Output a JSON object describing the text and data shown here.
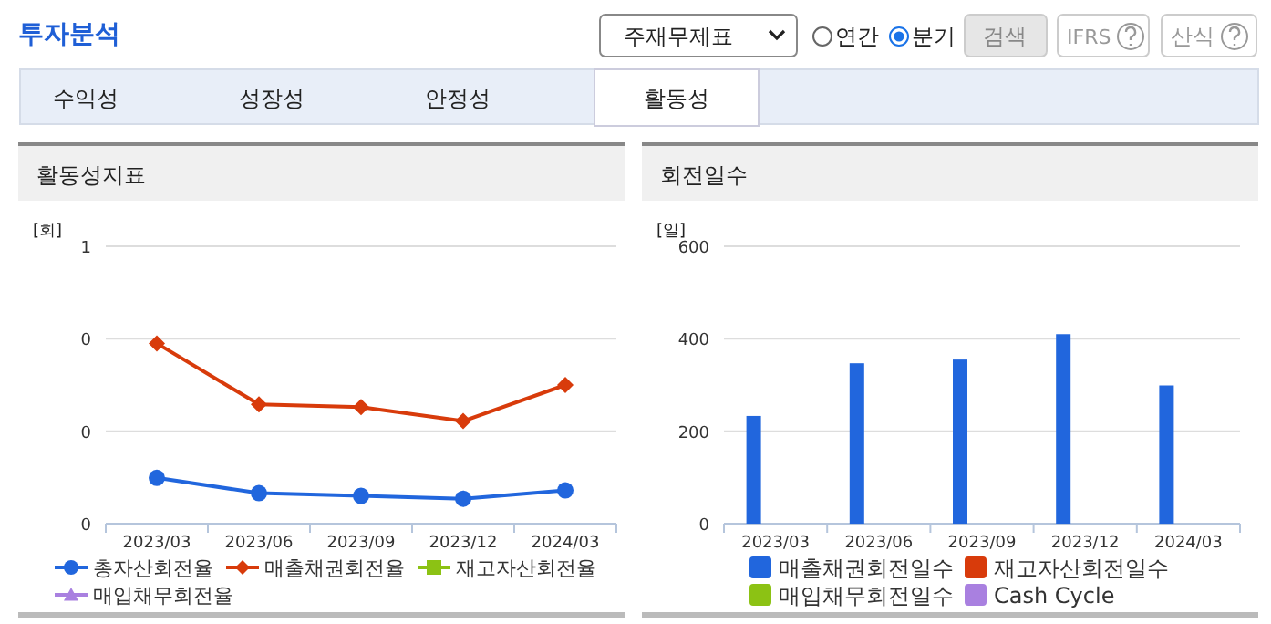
{
  "chart_data": [
    {
      "type": "other",
      "title": "투자분석",
      "annotations": [
        "주재무제표",
        "연간",
        "분기",
        "검색",
        "IFRS",
        "산식",
        "수익성",
        "성장성",
        "안정성",
        "활동성"
      ]
    },
    {
      "type": "line",
      "title": "활동성지표",
      "ylabel": "[회]",
      "categories": [
        "2023/03",
        "2023/06",
        "2023/09",
        "2023/12",
        "2024/03"
      ],
      "ylim": [
        0,
        0.6
      ],
      "yticks": [
        0,
        {
          "value": 0.2,
          "label": "0"
        },
        {
          "value": 0.4,
          "label": "0"
        },
        {
          "value": 0.6,
          "label": "1"
        }
      ],
      "grid": "y",
      "legend": "bottom",
      "series": [
        {
          "name": "총자산회전율",
          "color": "#2166dd",
          "marker": "circle",
          "values": [
            0.099,
            0.066,
            0.06,
            0.054,
            0.072
          ]
        },
        {
          "name": "매출채권회전율",
          "color": "#d83b0b",
          "marker": "diamond",
          "values": [
            0.39,
            0.258,
            0.252,
            0.222,
            0.3
          ]
        },
        {
          "name": "재고자산회전율",
          "color": "#8cc214",
          "marker": "square",
          "values": [
            null,
            null,
            null,
            null,
            null
          ]
        },
        {
          "name": "매입채무회전율",
          "color": "#a980e0",
          "marker": "triangle",
          "values": [
            null,
            null,
            null,
            null,
            null
          ]
        }
      ]
    },
    {
      "type": "bar",
      "title": "회전일수",
      "ylabel": "[일]",
      "categories": [
        "2023/03",
        "2023/06",
        "2023/09",
        "2023/12",
        "2024/03"
      ],
      "ylim": [
        0,
        600
      ],
      "yticks": [
        0,
        200,
        400,
        600
      ],
      "grid": "y",
      "legend": "bottom",
      "series": [
        {
          "name": "매출채권회전일수",
          "color": "#2166dd",
          "values": [
            233,
            347,
            355,
            410,
            299
          ]
        },
        {
          "name": "재고자산회전일수",
          "color": "#d83b0b",
          "values": [
            null,
            null,
            null,
            null,
            null
          ]
        },
        {
          "name": "매입채무회전일수",
          "color": "#8cc214",
          "values": [
            null,
            null,
            null,
            null,
            null
          ]
        },
        {
          "name": "Cash Cycle",
          "color": "#a980e0",
          "values": [
            null,
            null,
            null,
            null,
            null
          ]
        }
      ]
    }
  ]
}
